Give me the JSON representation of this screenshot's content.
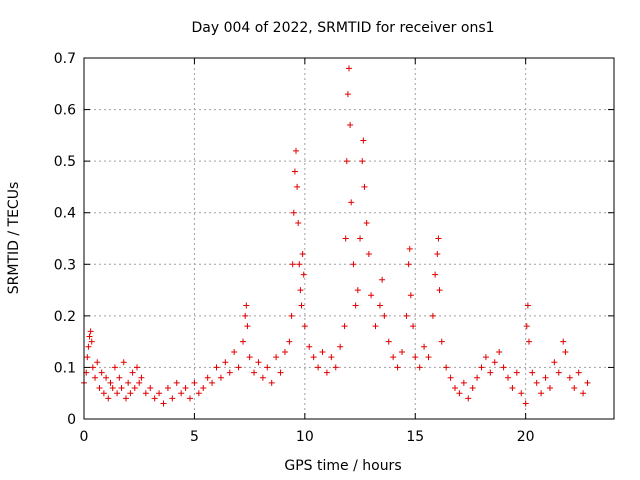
{
  "chart_data": {
    "type": "scatter",
    "title": "Day 004 of 2022, SRMTID for receiver ons1",
    "xlabel": "GPS time / hours",
    "ylabel": "SRMTID / TECUs",
    "xlim": [
      0,
      24
    ],
    "ylim": [
      0,
      0.7
    ],
    "xticks": [
      "0",
      "5",
      "10",
      "15",
      "20"
    ],
    "xtick_values": [
      0,
      5,
      10,
      15,
      20
    ],
    "yticks": [
      "0",
      "0.1",
      "0.2",
      "0.3",
      "0.4",
      "0.5",
      "0.6",
      "0.7"
    ],
    "ytick_values": [
      0,
      0.1,
      0.2,
      0.3,
      0.4,
      0.5,
      0.6,
      0.7
    ],
    "grid": true,
    "marker": "+",
    "color": "#e00000",
    "series": [
      {
        "name": "ons1",
        "points": [
          [
            0.0,
            0.07
          ],
          [
            0.1,
            0.09
          ],
          [
            0.15,
            0.12
          ],
          [
            0.2,
            0.14
          ],
          [
            0.25,
            0.16
          ],
          [
            0.3,
            0.17
          ],
          [
            0.35,
            0.15
          ],
          [
            0.4,
            0.1
          ],
          [
            0.5,
            0.08
          ],
          [
            0.6,
            0.11
          ],
          [
            0.7,
            0.06
          ],
          [
            0.8,
            0.09
          ],
          [
            0.9,
            0.05
          ],
          [
            1.0,
            0.08
          ],
          [
            1.1,
            0.04
          ],
          [
            1.2,
            0.07
          ],
          [
            1.3,
            0.06
          ],
          [
            1.4,
            0.1
          ],
          [
            1.5,
            0.05
          ],
          [
            1.6,
            0.08
          ],
          [
            1.7,
            0.06
          ],
          [
            1.8,
            0.11
          ],
          [
            1.9,
            0.04
          ],
          [
            2.0,
            0.07
          ],
          [
            2.1,
            0.05
          ],
          [
            2.2,
            0.09
          ],
          [
            2.3,
            0.06
          ],
          [
            2.4,
            0.1
          ],
          [
            2.5,
            0.07
          ],
          [
            2.6,
            0.08
          ],
          [
            2.8,
            0.05
          ],
          [
            3.0,
            0.06
          ],
          [
            3.2,
            0.04
          ],
          [
            3.4,
            0.05
          ],
          [
            3.6,
            0.03
          ],
          [
            3.8,
            0.06
          ],
          [
            4.0,
            0.04
          ],
          [
            4.2,
            0.07
          ],
          [
            4.4,
            0.05
          ],
          [
            4.6,
            0.06
          ],
          [
            4.8,
            0.04
          ],
          [
            5.0,
            0.07
          ],
          [
            5.2,
            0.05
          ],
          [
            5.4,
            0.06
          ],
          [
            5.6,
            0.08
          ],
          [
            5.8,
            0.07
          ],
          [
            6.0,
            0.1
          ],
          [
            6.2,
            0.08
          ],
          [
            6.4,
            0.11
          ],
          [
            6.6,
            0.09
          ],
          [
            6.8,
            0.13
          ],
          [
            7.0,
            0.1
          ],
          [
            7.2,
            0.15
          ],
          [
            7.3,
            0.2
          ],
          [
            7.35,
            0.22
          ],
          [
            7.4,
            0.18
          ],
          [
            7.5,
            0.12
          ],
          [
            7.7,
            0.09
          ],
          [
            7.9,
            0.11
          ],
          [
            8.1,
            0.08
          ],
          [
            8.3,
            0.1
          ],
          [
            8.5,
            0.07
          ],
          [
            8.7,
            0.12
          ],
          [
            8.9,
            0.09
          ],
          [
            9.1,
            0.13
          ],
          [
            9.3,
            0.15
          ],
          [
            9.4,
            0.2
          ],
          [
            9.45,
            0.3
          ],
          [
            9.5,
            0.4
          ],
          [
            9.55,
            0.48
          ],
          [
            9.6,
            0.52
          ],
          [
            9.65,
            0.45
          ],
          [
            9.7,
            0.38
          ],
          [
            9.75,
            0.3
          ],
          [
            9.8,
            0.25
          ],
          [
            9.85,
            0.22
          ],
          [
            9.9,
            0.32
          ],
          [
            9.95,
            0.28
          ],
          [
            10.0,
            0.18
          ],
          [
            10.2,
            0.14
          ],
          [
            10.4,
            0.12
          ],
          [
            10.6,
            0.1
          ],
          [
            10.8,
            0.13
          ],
          [
            11.0,
            0.09
          ],
          [
            11.2,
            0.12
          ],
          [
            11.4,
            0.1
          ],
          [
            11.6,
            0.14
          ],
          [
            11.8,
            0.18
          ],
          [
            11.85,
            0.35
          ],
          [
            11.9,
            0.5
          ],
          [
            11.95,
            0.63
          ],
          [
            12.0,
            0.68
          ],
          [
            12.05,
            0.57
          ],
          [
            12.1,
            0.42
          ],
          [
            12.2,
            0.3
          ],
          [
            12.3,
            0.22
          ],
          [
            12.4,
            0.25
          ],
          [
            12.5,
            0.35
          ],
          [
            12.6,
            0.5
          ],
          [
            12.65,
            0.54
          ],
          [
            12.7,
            0.45
          ],
          [
            12.8,
            0.38
          ],
          [
            12.9,
            0.32
          ],
          [
            13.0,
            0.24
          ],
          [
            13.2,
            0.18
          ],
          [
            13.4,
            0.22
          ],
          [
            13.5,
            0.27
          ],
          [
            13.6,
            0.2
          ],
          [
            13.8,
            0.15
          ],
          [
            14.0,
            0.12
          ],
          [
            14.2,
            0.1
          ],
          [
            14.4,
            0.13
          ],
          [
            14.6,
            0.2
          ],
          [
            14.7,
            0.3
          ],
          [
            14.75,
            0.33
          ],
          [
            14.8,
            0.24
          ],
          [
            14.9,
            0.18
          ],
          [
            15.0,
            0.12
          ],
          [
            15.2,
            0.1
          ],
          [
            15.4,
            0.14
          ],
          [
            15.6,
            0.12
          ],
          [
            15.8,
            0.2
          ],
          [
            15.9,
            0.28
          ],
          [
            16.0,
            0.32
          ],
          [
            16.05,
            0.35
          ],
          [
            16.1,
            0.25
          ],
          [
            16.2,
            0.15
          ],
          [
            16.4,
            0.1
          ],
          [
            16.6,
            0.08
          ],
          [
            16.8,
            0.06
          ],
          [
            17.0,
            0.05
          ],
          [
            17.2,
            0.07
          ],
          [
            17.4,
            0.04
          ],
          [
            17.6,
            0.06
          ],
          [
            17.8,
            0.08
          ],
          [
            18.0,
            0.1
          ],
          [
            18.2,
            0.12
          ],
          [
            18.4,
            0.09
          ],
          [
            18.6,
            0.11
          ],
          [
            18.8,
            0.13
          ],
          [
            19.0,
            0.1
          ],
          [
            19.2,
            0.08
          ],
          [
            19.4,
            0.06
          ],
          [
            19.6,
            0.09
          ],
          [
            19.8,
            0.05
          ],
          [
            20.0,
            0.03
          ],
          [
            20.05,
            0.18
          ],
          [
            20.1,
            0.22
          ],
          [
            20.15,
            0.15
          ],
          [
            20.3,
            0.09
          ],
          [
            20.5,
            0.07
          ],
          [
            20.7,
            0.05
          ],
          [
            20.9,
            0.08
          ],
          [
            21.1,
            0.06
          ],
          [
            21.3,
            0.11
          ],
          [
            21.5,
            0.09
          ],
          [
            21.7,
            0.15
          ],
          [
            21.8,
            0.13
          ],
          [
            22.0,
            0.08
          ],
          [
            22.2,
            0.06
          ],
          [
            22.4,
            0.09
          ],
          [
            22.6,
            0.05
          ],
          [
            22.8,
            0.07
          ]
        ]
      }
    ]
  }
}
